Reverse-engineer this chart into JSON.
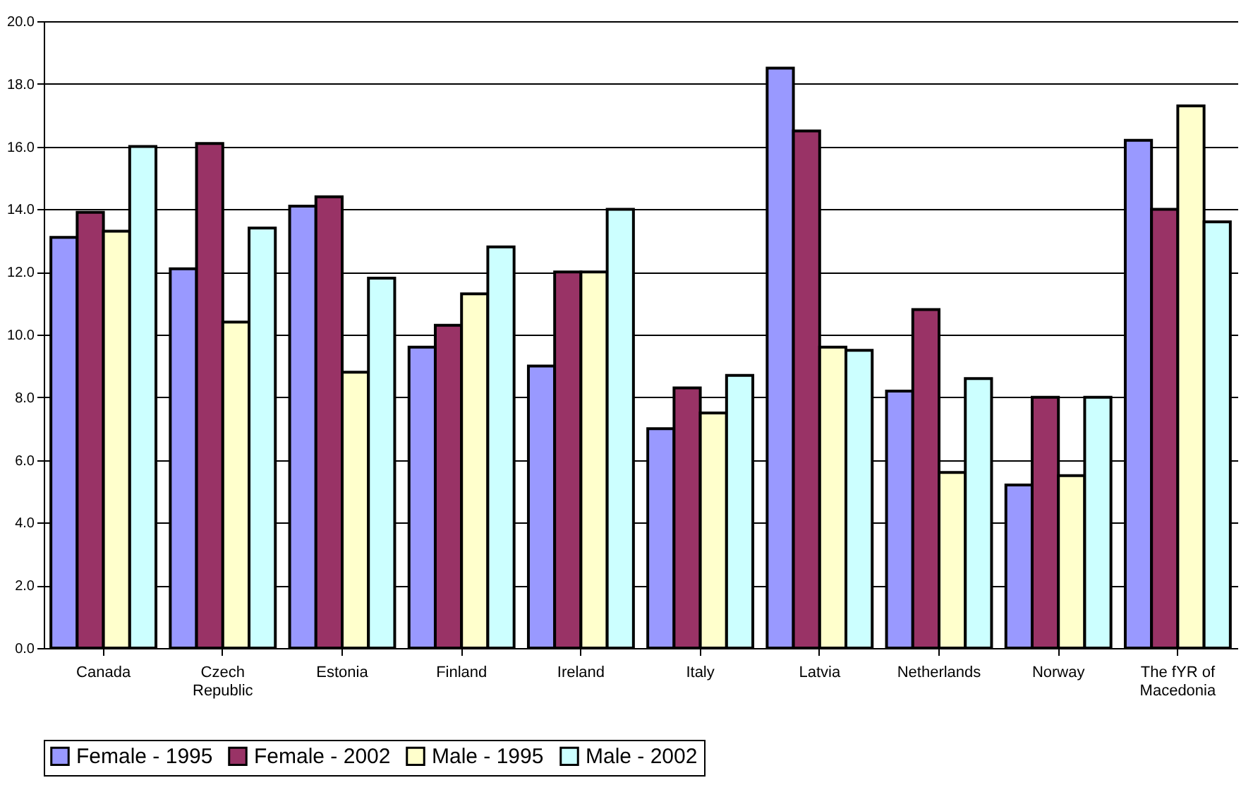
{
  "chart_data": {
    "type": "bar",
    "categories": [
      "Canada",
      "Czech Republic",
      "Estonia",
      "Finland",
      "Ireland",
      "Italy",
      "Latvia",
      "Netherlands",
      "Norway",
      "The fYR of Macedonia"
    ],
    "series": [
      {
        "name": "Female - 1995",
        "color": "#9999ff",
        "values": [
          13.1,
          12.1,
          14.1,
          9.6,
          9.0,
          7.0,
          18.5,
          8.2,
          5.2,
          16.2
        ]
      },
      {
        "name": "Female - 2002",
        "color": "#993366",
        "values": [
          13.9,
          16.1,
          14.4,
          10.3,
          12.0,
          8.3,
          16.5,
          10.8,
          8.0,
          14.0
        ]
      },
      {
        "name": "Male - 1995",
        "color": "#ffffcc",
        "values": [
          13.3,
          10.4,
          8.8,
          11.3,
          12.0,
          7.5,
          9.6,
          5.6,
          5.5,
          17.3
        ]
      },
      {
        "name": "Male - 2002",
        "color": "#ccffff",
        "values": [
          16.0,
          13.4,
          11.8,
          12.8,
          14.0,
          8.7,
          9.5,
          8.6,
          8.0,
          13.6
        ]
      }
    ],
    "ylim": [
      0,
      20
    ],
    "yticks": [
      {
        "value": 0,
        "label": "0.0"
      },
      {
        "value": 2,
        "label": "2.0"
      },
      {
        "value": 4,
        "label": "4.0"
      },
      {
        "value": 6,
        "label": "6.0"
      },
      {
        "value": 8,
        "label": "8.0"
      },
      {
        "value": 10,
        "label": "10.0"
      },
      {
        "value": 12,
        "label": "12.0"
      },
      {
        "value": 14,
        "label": "14.0"
      },
      {
        "value": 16,
        "label": "16.0"
      },
      {
        "value": 18,
        "label": "18.0"
      },
      {
        "value": 20,
        "label": "20.0"
      }
    ],
    "grid": "y",
    "legend": "bottom"
  }
}
